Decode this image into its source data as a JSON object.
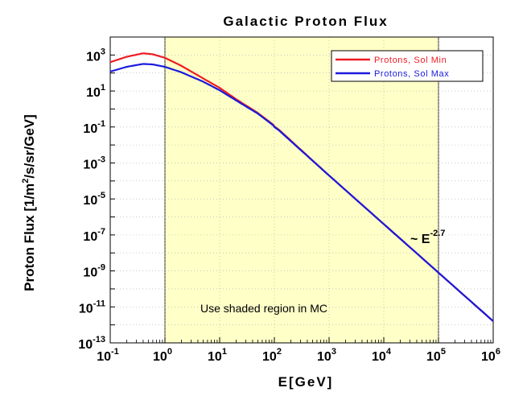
{
  "chart_data": {
    "type": "line",
    "title": "Galactic Proton Flux",
    "xlabel": "E[GeV]",
    "ylabel_pre": "Proton Flux [1/m",
    "ylabel_sup": "2",
    "ylabel_post": "/s/sr/GeV]",
    "x_scale": "log",
    "y_scale": "log",
    "xlim": [
      0.1,
      1000000
    ],
    "ylim": [
      1e-13,
      10000
    ],
    "x_tick_exponents": [
      "-1",
      "0",
      "1",
      "2",
      "3",
      "4",
      "5",
      "6"
    ],
    "y_tick_exponents": [
      "-13",
      "-11",
      "-9",
      "-7",
      "-5",
      "-3",
      "-1",
      "1",
      "3"
    ],
    "tick_base": "10",
    "grid": true,
    "shaded_region": {
      "x_range": [
        1,
        100000
      ],
      "color": "#ffffc8",
      "label": "Use shaded region in MC"
    },
    "legend": {
      "position": "top-right"
    },
    "series": [
      {
        "name": "Protons, Sol Min",
        "color": "#ee1c24",
        "x": [
          0.1,
          0.2,
          0.4,
          0.6,
          1,
          2,
          5,
          10,
          20,
          50,
          100,
          1000,
          10000,
          100000,
          1000000
        ],
        "y": [
          400,
          800,
          1250,
          1100,
          700,
          250,
          50,
          15,
          3.5,
          0.6,
          0.12,
          0.0002,
          4e-07,
          8e-10,
          1.6e-12
        ]
      },
      {
        "name": "Protons, Sol Max",
        "color": "#1a1adc",
        "x": [
          0.1,
          0.2,
          0.4,
          0.6,
          1,
          2,
          5,
          10,
          20,
          50,
          100,
          1000,
          10000,
          100000,
          1000000
        ],
        "y": [
          120,
          220,
          320,
          300,
          220,
          110,
          33,
          11,
          3,
          0.55,
          0.11,
          0.0002,
          4e-07,
          8e-10,
          1.6e-12
        ]
      }
    ],
    "annotation": {
      "prefix": "~ E",
      "exponent": "-2.7",
      "x": 30000,
      "y": 1.5e-07
    }
  }
}
